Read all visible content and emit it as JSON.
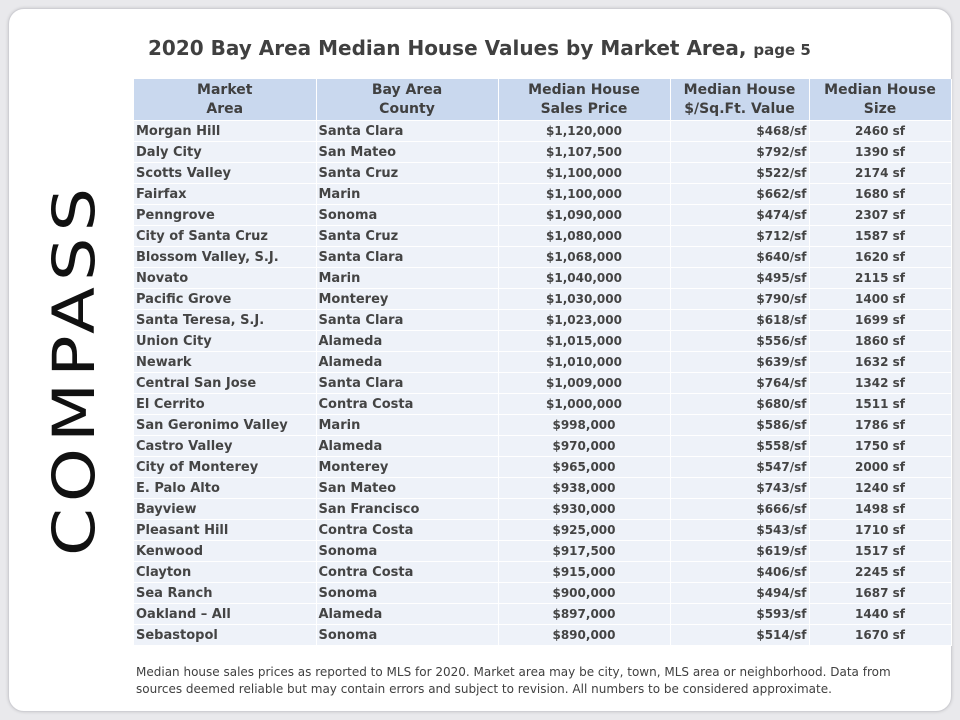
{
  "title": {
    "main": "2020 Bay Area Median House Values by Market Area,",
    "suffix": "page 5"
  },
  "logo": {
    "text": "COMPASS",
    "icon": "compass-logo"
  },
  "table": {
    "headers": [
      [
        "Market",
        "Area"
      ],
      [
        "Bay Area",
        "County"
      ],
      [
        "Median House",
        "Sales Price"
      ],
      [
        "Median House",
        "$/Sq.Ft. Value"
      ],
      [
        "Median House",
        "Size"
      ]
    ],
    "rows": [
      [
        "Morgan Hill",
        "Santa Clara",
        "$1,120,000",
        "$468/sf",
        "2460  sf"
      ],
      [
        "Daly City",
        "San Mateo",
        "$1,107,500",
        "$792/sf",
        "1390  sf"
      ],
      [
        "Scotts Valley",
        "Santa Cruz",
        "$1,100,000",
        "$522/sf",
        "2174  sf"
      ],
      [
        "Fairfax",
        "Marin",
        "$1,100,000",
        "$662/sf",
        "1680  sf"
      ],
      [
        "Penngrove",
        "Sonoma",
        "$1,090,000",
        "$474/sf",
        "2307  sf"
      ],
      [
        "City of Santa Cruz",
        "Santa Cruz",
        "$1,080,000",
        "$712/sf",
        "1587  sf"
      ],
      [
        "Blossom Valley, S.J.",
        "Santa Clara",
        "$1,068,000",
        "$640/sf",
        "1620  sf"
      ],
      [
        "Novato",
        "Marin",
        "$1,040,000",
        "$495/sf",
        "2115  sf"
      ],
      [
        "Pacific Grove",
        "Monterey",
        "$1,030,000",
        "$790/sf",
        "1400  sf"
      ],
      [
        "Santa Teresa, S.J.",
        "Santa Clara",
        "$1,023,000",
        "$618/sf",
        "1699  sf"
      ],
      [
        "Union City",
        "Alameda",
        "$1,015,000",
        "$556/sf",
        "1860  sf"
      ],
      [
        "Newark",
        "Alameda",
        "$1,010,000",
        "$639/sf",
        "1632  sf"
      ],
      [
        "Central San Jose",
        "Santa Clara",
        "$1,009,000",
        "$764/sf",
        "1342  sf"
      ],
      [
        "El Cerrito",
        "Contra Costa",
        "$1,000,000",
        "$680/sf",
        "1511  sf"
      ],
      [
        "San Geronimo Valley",
        "Marin",
        "$998,000",
        "$586/sf",
        "1786  sf"
      ],
      [
        "Castro Valley",
        "Alameda",
        "$970,000",
        "$558/sf",
        "1750  sf"
      ],
      [
        "City of Monterey",
        "Monterey",
        "$965,000",
        "$547/sf",
        "2000  sf"
      ],
      [
        "E. Palo Alto",
        "San Mateo",
        "$938,000",
        "$743/sf",
        "1240  sf"
      ],
      [
        "Bayview",
        "San Francisco",
        "$930,000",
        "$666/sf",
        "1498  sf"
      ],
      [
        "Pleasant Hill",
        "Contra Costa",
        "$925,000",
        "$543/sf",
        "1710  sf"
      ],
      [
        "Kenwood",
        "Sonoma",
        "$917,500",
        "$619/sf",
        "1517  sf"
      ],
      [
        "Clayton",
        "Contra Costa",
        "$915,000",
        "$406/sf",
        "2245  sf"
      ],
      [
        "Sea Ranch",
        "Sonoma",
        "$900,000",
        "$494/sf",
        "1687  sf"
      ],
      [
        "Oakland – All",
        "Alameda",
        "$897,000",
        "$593/sf",
        "1440  sf"
      ],
      [
        "Sebastopol",
        "Sonoma",
        "$890,000",
        "$514/sf",
        "1670  sf"
      ]
    ]
  },
  "footnote": "Median house sales prices as reported to MLS for 2020.  Market area may be city, town, MLS area or neighborhood. Data from sources deemed reliable but may contain errors and subject to revision. All numbers to be considered approximate.",
  "colors": {
    "header_bg": "#c9d8ee",
    "row_bg": "#eef2f9",
    "text": "#404040"
  }
}
